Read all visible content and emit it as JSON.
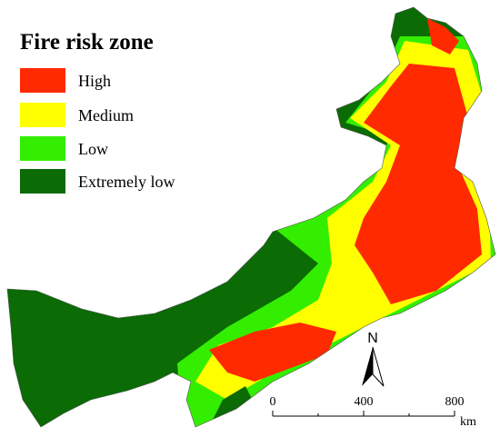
{
  "legend": {
    "title": "Fire risk zone",
    "items": [
      {
        "label": "High",
        "color": "#ff2a00"
      },
      {
        "label": "Medium",
        "color": "#ffff00"
      },
      {
        "label": "Low",
        "color": "#33ee00"
      },
      {
        "label": "Extremely low",
        "color": "#0b6b05"
      }
    ]
  },
  "north_arrow": {
    "label": "N"
  },
  "scale_bar": {
    "ticks": [
      0,
      400,
      800
    ],
    "unit": "km"
  }
}
